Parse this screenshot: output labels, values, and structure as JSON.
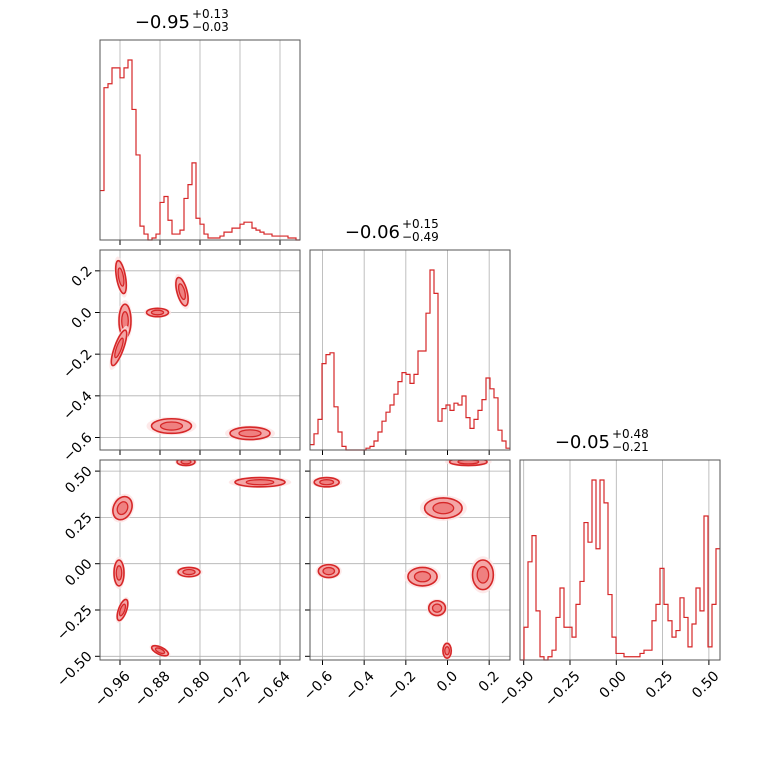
{
  "chart_data": {
    "type": "corner",
    "description_note": "",
    "colors": {
      "line": "#d62728",
      "fill": "#f4a6a6",
      "grid": "#b0b0b0",
      "frame": "#555555"
    },
    "grid": true,
    "parameters": [
      {
        "range": [
          -1.0,
          -0.6
        ],
        "ticks": [
          -0.96,
          -0.88,
          -0.8,
          -0.72,
          -0.64
        ],
        "tick_labels": [
          "−0.96",
          "−0.88",
          "−0.80",
          "−0.72",
          "−0.64"
        ],
        "title_median": "−0.95",
        "title_plus": "+0.13",
        "title_minus": "−0.03",
        "histogram": {
          "bin_start": -1.0,
          "bin_width": 0.008,
          "counts": [
            0.25,
            0.77,
            0.79,
            0.87,
            0.87,
            0.82,
            0.87,
            0.91,
            0.66,
            0.43,
            0.07,
            0.03,
            0.0,
            0.01,
            0.03,
            0.19,
            0.22,
            0.1,
            0.03,
            0.03,
            0.05,
            0.21,
            0.28,
            0.39,
            0.11,
            0.08,
            0.03,
            0.01,
            0.01,
            0.01,
            0.02,
            0.04,
            0.04,
            0.06,
            0.06,
            0.08,
            0.09,
            0.09,
            0.06,
            0.05,
            0.04,
            0.03,
            0.03,
            0.02,
            0.02,
            0.02,
            0.02,
            0.01,
            0.01,
            0.0
          ]
        }
      },
      {
        "range": [
          -0.66,
          0.3
        ],
        "ticks": [
          -0.6,
          -0.4,
          -0.2,
          0.0,
          0.2
        ],
        "tick_labels": [
          "−0.6",
          "−0.4",
          "−0.2",
          "0.0",
          "0.2"
        ],
        "title_median": "−0.06",
        "title_plus": "+0.15",
        "title_minus": "−0.49",
        "histogram": {
          "bin_start": -0.66,
          "bin_width": 0.0192,
          "counts": [
            0.03,
            0.09,
            0.17,
            0.48,
            0.53,
            0.54,
            0.24,
            0.1,
            0.02,
            0.0,
            0.0,
            0.0,
            0.0,
            0.0,
            0.01,
            0.02,
            0.05,
            0.1,
            0.16,
            0.21,
            0.25,
            0.31,
            0.38,
            0.43,
            0.42,
            0.37,
            0.42,
            0.55,
            0.55,
            0.76,
            1.0,
            0.87,
            0.16,
            0.23,
            0.25,
            0.22,
            0.26,
            0.25,
            0.3,
            0.18,
            0.12,
            0.17,
            0.22,
            0.28,
            0.4,
            0.34,
            0.29,
            0.11,
            0.05,
            0.01
          ]
        }
      },
      {
        "range": [
          -0.52,
          0.56
        ],
        "ticks": [
          -0.5,
          -0.25,
          0.0,
          0.25,
          0.5
        ],
        "tick_labels": [
          "−0.50",
          "−0.25",
          "0.00",
          "0.25",
          "0.50"
        ],
        "title_median": "−0.05",
        "title_plus": "+0.48",
        "title_minus": "−0.21",
        "histogram": {
          "bin_start": -0.52,
          "bin_width": 0.0216,
          "counts": [
            0.0,
            0.1,
            0.3,
            0.38,
            0.15,
            0.01,
            0.0,
            0.01,
            0.03,
            0.13,
            0.22,
            0.1,
            0.1,
            0.07,
            0.17,
            0.24,
            0.42,
            0.36,
            0.55,
            0.34,
            0.55,
            0.48,
            0.2,
            0.07,
            0.02,
            0.02,
            0.01,
            0.01,
            0.01,
            0.01,
            0.02,
            0.03,
            0.03,
            0.12,
            0.17,
            0.28,
            0.17,
            0.12,
            0.07,
            0.09,
            0.19,
            0.13,
            0.04,
            0.11,
            0.22,
            0.15,
            0.44,
            0.04,
            0.17,
            0.34
          ]
        }
      }
    ],
    "pairs": [
      {
        "x_param": 0,
        "y_param": 1,
        "clusters": [
          {
            "x": -0.958,
            "y": 0.17,
            "rx": 0.009,
            "ry": 0.08,
            "angle": -10
          },
          {
            "x": -0.95,
            "y": -0.04,
            "rx": 0.012,
            "ry": 0.08,
            "angle": 0
          },
          {
            "x": -0.962,
            "y": -0.17,
            "rx": 0.009,
            "ry": 0.09,
            "angle": 20
          },
          {
            "x": -0.885,
            "y": 0.0,
            "rx": 0.022,
            "ry": 0.02,
            "angle": 0
          },
          {
            "x": -0.836,
            "y": 0.1,
            "rx": 0.01,
            "ry": 0.07,
            "angle": -15
          },
          {
            "x": -0.857,
            "y": -0.545,
            "rx": 0.04,
            "ry": 0.035,
            "angle": 0
          },
          {
            "x": -0.7,
            "y": -0.58,
            "rx": 0.04,
            "ry": 0.03,
            "angle": 0
          }
        ]
      },
      {
        "x_param": 0,
        "y_param": 2,
        "clusters": [
          {
            "x": -0.955,
            "y": 0.3,
            "rx": 0.018,
            "ry": 0.065,
            "angle": 25
          },
          {
            "x": -0.962,
            "y": -0.05,
            "rx": 0.01,
            "ry": 0.07,
            "angle": 0
          },
          {
            "x": -0.955,
            "y": -0.25,
            "rx": 0.008,
            "ry": 0.06,
            "angle": 20
          },
          {
            "x": -0.88,
            "y": -0.47,
            "rx": 0.018,
            "ry": 0.02,
            "angle": 25
          },
          {
            "x": -0.822,
            "y": -0.045,
            "rx": 0.022,
            "ry": 0.025,
            "angle": 0
          },
          {
            "x": -0.828,
            "y": 0.55,
            "rx": 0.018,
            "ry": 0.02,
            "angle": 0
          },
          {
            "x": -0.68,
            "y": 0.44,
            "rx": 0.05,
            "ry": 0.025,
            "angle": 0
          }
        ]
      },
      {
        "x_param": 1,
        "y_param": 2,
        "clusters": [
          {
            "x": -0.58,
            "y": 0.44,
            "rx": 0.06,
            "ry": 0.025,
            "angle": 0
          },
          {
            "x": -0.57,
            "y": -0.04,
            "rx": 0.05,
            "ry": 0.035,
            "angle": 0
          },
          {
            "x": -0.02,
            "y": 0.3,
            "rx": 0.09,
            "ry": 0.055,
            "angle": 0
          },
          {
            "x": -0.12,
            "y": -0.07,
            "rx": 0.07,
            "ry": 0.05,
            "angle": 0
          },
          {
            "x": 0.1,
            "y": 0.55,
            "rx": 0.09,
            "ry": 0.02,
            "angle": 0
          },
          {
            "x": 0.17,
            "y": -0.06,
            "rx": 0.05,
            "ry": 0.08,
            "angle": 0
          },
          {
            "x": -0.05,
            "y": -0.24,
            "rx": 0.04,
            "ry": 0.04,
            "angle": 0
          },
          {
            "x": -0.002,
            "y": -0.47,
            "rx": 0.02,
            "ry": 0.04,
            "angle": 0
          }
        ]
      }
    ]
  }
}
